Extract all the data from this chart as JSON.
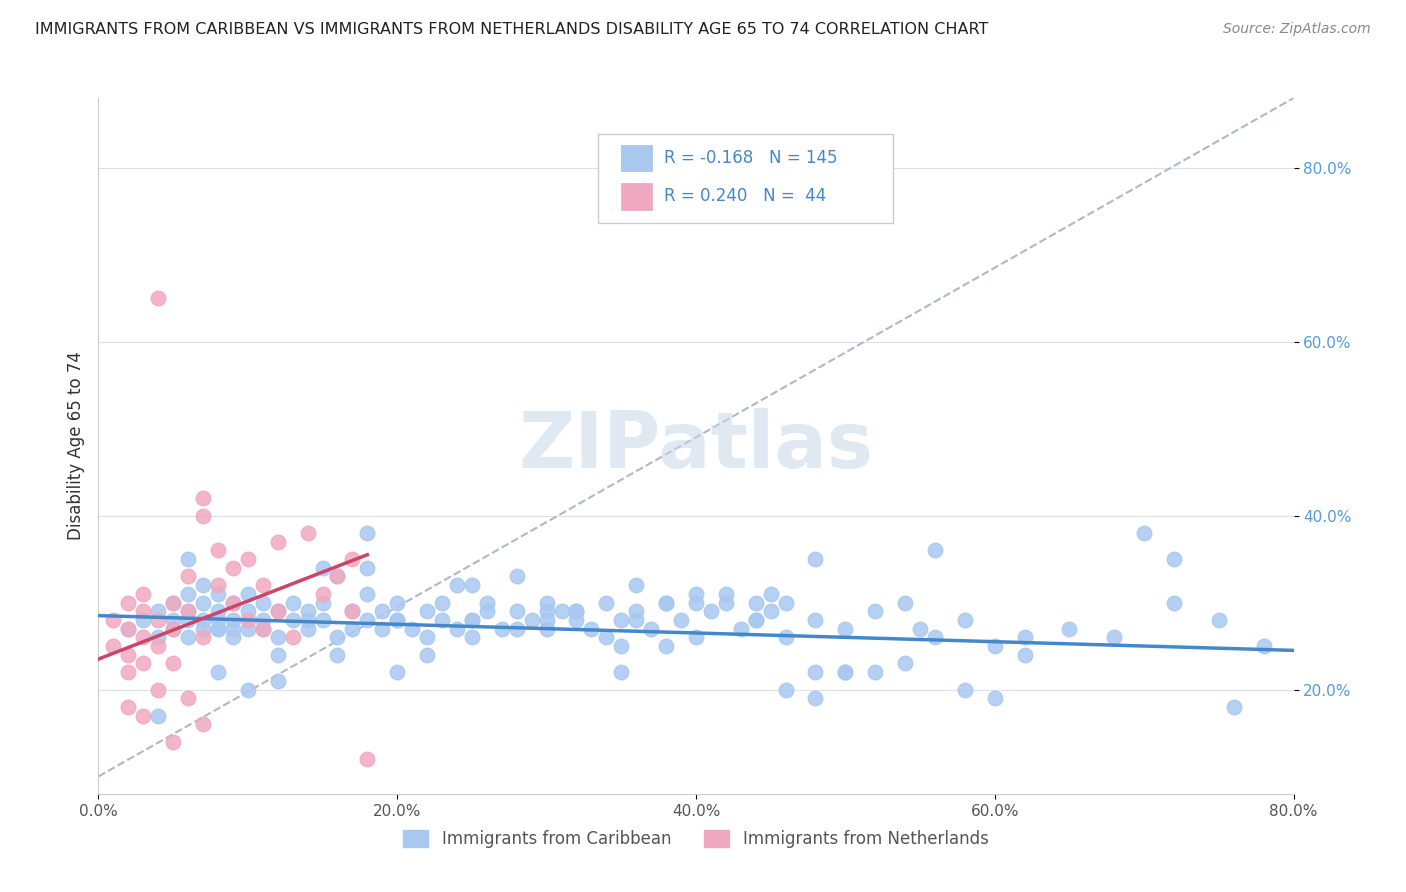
{
  "title": "IMMIGRANTS FROM CARIBBEAN VS IMMIGRANTS FROM NETHERLANDS DISABILITY AGE 65 TO 74 CORRELATION CHART",
  "source": "Source: ZipAtlas.com",
  "ylabel": "Disability Age 65 to 74",
  "xlim": [
    0.0,
    0.8
  ],
  "ylim": [
    0.08,
    0.88
  ],
  "xtick_labels": [
    "0.0%",
    "20.0%",
    "40.0%",
    "60.0%",
    "80.0%"
  ],
  "xtick_vals": [
    0.0,
    0.2,
    0.4,
    0.6,
    0.8
  ],
  "ytick_labels": [
    "20.0%",
    "40.0%",
    "60.0%",
    "80.0%"
  ],
  "ytick_vals": [
    0.2,
    0.4,
    0.6,
    0.8
  ],
  "legend_blue_r": "-0.168",
  "legend_blue_n": "145",
  "legend_pink_r": "0.240",
  "legend_pink_n": "44",
  "blue_color": "#a8c8f0",
  "pink_color": "#f0a8c0",
  "blue_line_color": "#4488cc",
  "pink_line_color": "#cc4466",
  "ref_line_color": "#b0b8c8",
  "watermark": "ZIPatlas",
  "blue_scatter_x": [
    0.02,
    0.03,
    0.04,
    0.04,
    0.05,
    0.05,
    0.05,
    0.06,
    0.06,
    0.06,
    0.06,
    0.07,
    0.07,
    0.07,
    0.07,
    0.08,
    0.08,
    0.08,
    0.08,
    0.09,
    0.09,
    0.09,
    0.1,
    0.1,
    0.1,
    0.11,
    0.11,
    0.11,
    0.12,
    0.12,
    0.13,
    0.13,
    0.14,
    0.14,
    0.15,
    0.15,
    0.16,
    0.17,
    0.17,
    0.18,
    0.18,
    0.19,
    0.19,
    0.2,
    0.2,
    0.21,
    0.22,
    0.23,
    0.23,
    0.24,
    0.25,
    0.25,
    0.26,
    0.27,
    0.28,
    0.29,
    0.3,
    0.3,
    0.31,
    0.32,
    0.33,
    0.34,
    0.35,
    0.36,
    0.37,
    0.38,
    0.39,
    0.4,
    0.41,
    0.42,
    0.43,
    0.44,
    0.45,
    0.46,
    0.48,
    0.5,
    0.52,
    0.54,
    0.55,
    0.58,
    0.6,
    0.62,
    0.65,
    0.68,
    0.7,
    0.72,
    0.75,
    0.78,
    0.58,
    0.48,
    0.35,
    0.25,
    0.18,
    0.12,
    0.08,
    0.06,
    0.22,
    0.3,
    0.4,
    0.5,
    0.16,
    0.24,
    0.32,
    0.44,
    0.54,
    0.22,
    0.3,
    0.36,
    0.46,
    0.2,
    0.28,
    0.38,
    0.48,
    0.15,
    0.25,
    0.35,
    0.45,
    0.18,
    0.26,
    0.34,
    0.44,
    0.52,
    0.6,
    0.1,
    0.14,
    0.42,
    0.38,
    0.32,
    0.28,
    0.2,
    0.16,
    0.12,
    0.08,
    0.62,
    0.56,
    0.5,
    0.46,
    0.4,
    0.36,
    0.56,
    0.48,
    0.72,
    0.76,
    0.04,
    0.09
  ],
  "blue_scatter_y": [
    0.27,
    0.28,
    0.26,
    0.29,
    0.28,
    0.3,
    0.27,
    0.26,
    0.29,
    0.31,
    0.28,
    0.27,
    0.3,
    0.28,
    0.32,
    0.29,
    0.27,
    0.31,
    0.28,
    0.3,
    0.26,
    0.28,
    0.27,
    0.29,
    0.31,
    0.28,
    0.3,
    0.27,
    0.29,
    0.26,
    0.28,
    0.3,
    0.27,
    0.29,
    0.28,
    0.3,
    0.26,
    0.29,
    0.27,
    0.28,
    0.31,
    0.27,
    0.29,
    0.3,
    0.28,
    0.27,
    0.29,
    0.28,
    0.3,
    0.27,
    0.26,
    0.28,
    0.3,
    0.27,
    0.29,
    0.28,
    0.3,
    0.27,
    0.29,
    0.28,
    0.27,
    0.3,
    0.28,
    0.29,
    0.27,
    0.3,
    0.28,
    0.26,
    0.29,
    0.3,
    0.27,
    0.28,
    0.29,
    0.26,
    0.28,
    0.27,
    0.29,
    0.3,
    0.27,
    0.28,
    0.25,
    0.26,
    0.27,
    0.26,
    0.38,
    0.35,
    0.28,
    0.25,
    0.2,
    0.19,
    0.22,
    0.32,
    0.38,
    0.24,
    0.27,
    0.35,
    0.24,
    0.28,
    0.31,
    0.22,
    0.33,
    0.32,
    0.29,
    0.3,
    0.23,
    0.26,
    0.29,
    0.32,
    0.3,
    0.28,
    0.27,
    0.3,
    0.22,
    0.34,
    0.28,
    0.25,
    0.31,
    0.34,
    0.29,
    0.26,
    0.28,
    0.22,
    0.19,
    0.2,
    0.28,
    0.31,
    0.25,
    0.29,
    0.33,
    0.22,
    0.24,
    0.21,
    0.22,
    0.24,
    0.26,
    0.22,
    0.2,
    0.3,
    0.28,
    0.36,
    0.35,
    0.3,
    0.18,
    0.17,
    0.27
  ],
  "pink_scatter_x": [
    0.01,
    0.01,
    0.02,
    0.02,
    0.02,
    0.02,
    0.03,
    0.03,
    0.03,
    0.03,
    0.04,
    0.04,
    0.04,
    0.05,
    0.05,
    0.05,
    0.06,
    0.06,
    0.07,
    0.07,
    0.07,
    0.08,
    0.08,
    0.09,
    0.09,
    0.1,
    0.1,
    0.11,
    0.11,
    0.12,
    0.12,
    0.13,
    0.14,
    0.15,
    0.16,
    0.17,
    0.17,
    0.18,
    0.02,
    0.03,
    0.04,
    0.05,
    0.06,
    0.07
  ],
  "pink_scatter_y": [
    0.25,
    0.28,
    0.24,
    0.27,
    0.3,
    0.22,
    0.26,
    0.29,
    0.23,
    0.31,
    0.25,
    0.28,
    0.65,
    0.27,
    0.3,
    0.23,
    0.29,
    0.33,
    0.26,
    0.4,
    0.42,
    0.32,
    0.36,
    0.3,
    0.34,
    0.28,
    0.35,
    0.27,
    0.32,
    0.29,
    0.37,
    0.26,
    0.38,
    0.31,
    0.33,
    0.29,
    0.35,
    0.12,
    0.18,
    0.17,
    0.2,
    0.14,
    0.19,
    0.16
  ],
  "blue_trend_x": [
    0.0,
    0.8
  ],
  "blue_trend_y": [
    0.285,
    0.245
  ],
  "pink_trend_x": [
    0.0,
    0.18
  ],
  "pink_trend_y": [
    0.235,
    0.355
  ],
  "ref_line_x": [
    0.0,
    0.8
  ],
  "ref_line_y": [
    0.1,
    0.88
  ]
}
